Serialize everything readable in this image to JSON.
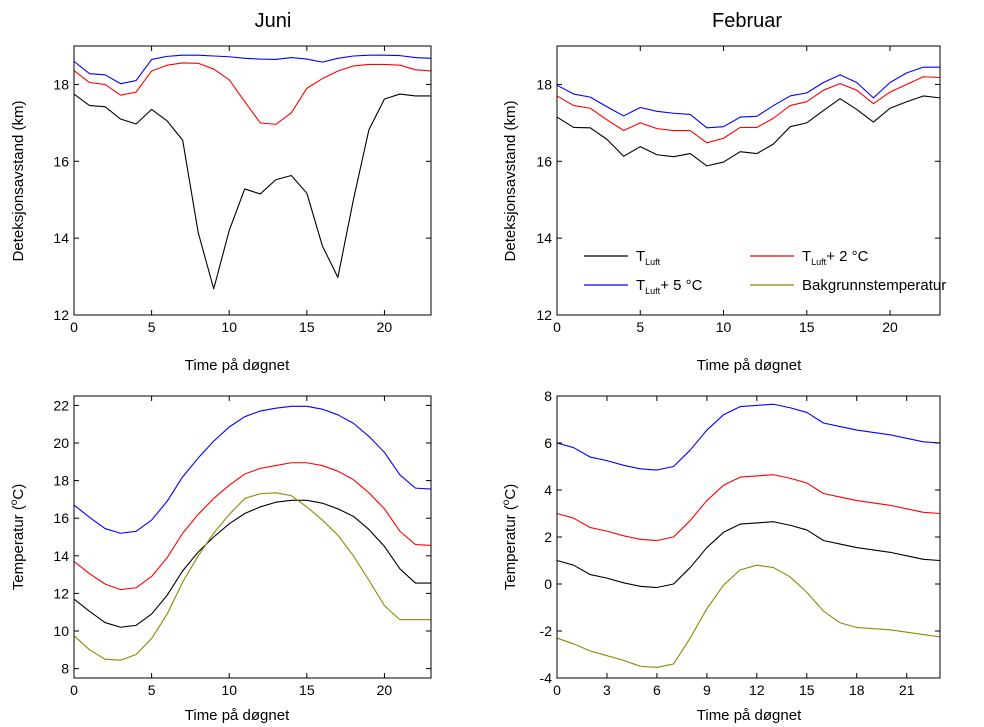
{
  "chart_data": [
    {
      "type": "line",
      "title": "Juni",
      "xlabel": "Time på døgnet",
      "ylabel": "Deteksjonsavstand (km)",
      "xlim": [
        0,
        23
      ],
      "ylim": [
        12,
        19
      ],
      "xticks": [
        0,
        5,
        10,
        15,
        20
      ],
      "yticks": [
        12,
        14,
        16,
        18
      ],
      "grid": false,
      "x": [
        0,
        1,
        2,
        3,
        4,
        5,
        6,
        7,
        8,
        9,
        10,
        11,
        12,
        13,
        14,
        15,
        16,
        17,
        18,
        19,
        20,
        21,
        22,
        23
      ],
      "series": [
        {
          "name": "T_Luft",
          "color": "#000000",
          "values": [
            17.75,
            17.45,
            17.42,
            17.1,
            16.97,
            17.35,
            17.05,
            16.55,
            14.15,
            12.68,
            14.2,
            15.28,
            15.15,
            15.52,
            15.63,
            15.17,
            13.8,
            12.98,
            15.0,
            16.82,
            17.62,
            17.75,
            17.7,
            17.7
          ]
        },
        {
          "name": "T_Luft + 2 °C",
          "color": "#ff0000",
          "values": [
            18.36,
            18.05,
            18.0,
            17.72,
            17.8,
            18.35,
            18.5,
            18.56,
            18.55,
            18.4,
            18.12,
            17.55,
            17.0,
            16.96,
            17.26,
            17.9,
            18.15,
            18.35,
            18.48,
            18.52,
            18.52,
            18.5,
            18.38,
            18.35
          ]
        },
        {
          "name": "T_Luft + 5 °C",
          "color": "#0000ff",
          "values": [
            18.6,
            18.28,
            18.25,
            18.02,
            18.1,
            18.65,
            18.73,
            18.76,
            18.76,
            18.74,
            18.72,
            18.68,
            18.66,
            18.65,
            18.7,
            18.66,
            18.58,
            18.68,
            18.74,
            18.76,
            18.76,
            18.75,
            18.7,
            18.68
          ]
        }
      ]
    },
    {
      "type": "line",
      "title": "Februar",
      "xlabel": "Time på døgnet",
      "ylabel": "Deteksjonsavstand (km)",
      "xlim": [
        0,
        23
      ],
      "ylim": [
        12,
        19
      ],
      "xticks": [
        0,
        5,
        10,
        15,
        20
      ],
      "yticks": [
        12,
        14,
        16,
        18
      ],
      "grid": false,
      "legend": "inside-bottom",
      "x": [
        0,
        1,
        2,
        3,
        4,
        5,
        6,
        7,
        8,
        9,
        10,
        11,
        12,
        13,
        14,
        15,
        16,
        17,
        18,
        19,
        20,
        21,
        22,
        23
      ],
      "series": [
        {
          "name": "T_Luft",
          "color": "#000000",
          "values": [
            17.15,
            16.88,
            16.87,
            16.57,
            16.13,
            16.38,
            16.17,
            16.12,
            16.2,
            15.88,
            15.98,
            16.25,
            16.2,
            16.45,
            16.9,
            17.0,
            17.32,
            17.63,
            17.35,
            17.02,
            17.38,
            17.55,
            17.7,
            17.65
          ]
        },
        {
          "name": "T_Luft + 2 °C",
          "color": "#ff0000",
          "values": [
            17.7,
            17.45,
            17.38,
            17.08,
            16.8,
            17.0,
            16.85,
            16.8,
            16.8,
            16.48,
            16.6,
            16.88,
            16.88,
            17.12,
            17.45,
            17.55,
            17.85,
            18.02,
            17.85,
            17.5,
            17.8,
            18.0,
            18.2,
            18.18
          ]
        },
        {
          "name": "T_Luft + 5 °C",
          "color": "#0000ff",
          "values": [
            17.98,
            17.75,
            17.67,
            17.42,
            17.18,
            17.4,
            17.3,
            17.25,
            17.22,
            16.87,
            16.9,
            17.15,
            17.17,
            17.45,
            17.7,
            17.78,
            18.05,
            18.25,
            18.05,
            17.65,
            18.05,
            18.3,
            18.45,
            18.45
          ]
        }
      ]
    },
    {
      "type": "line",
      "title": "",
      "xlabel": "Time på døgnet",
      "ylabel": "Temperatur (°C)",
      "xlim": [
        0,
        23
      ],
      "ylim": [
        7.5,
        22.5
      ],
      "xticks": [
        0,
        5,
        10,
        15,
        20
      ],
      "yticks": [
        8,
        10,
        12,
        14,
        16,
        18,
        20,
        22
      ],
      "grid": false,
      "x": [
        0,
        1,
        2,
        3,
        4,
        5,
        6,
        7,
        8,
        9,
        10,
        11,
        12,
        13,
        14,
        15,
        16,
        17,
        18,
        19,
        20,
        21,
        22,
        23
      ],
      "series": [
        {
          "name": "T_Luft",
          "color": "#000000",
          "values": [
            11.7,
            11.05,
            10.45,
            10.2,
            10.3,
            10.9,
            11.9,
            13.2,
            14.2,
            15.0,
            15.7,
            16.25,
            16.6,
            16.85,
            16.95,
            16.95,
            16.8,
            16.5,
            16.1,
            15.4,
            14.5,
            13.3,
            12.55,
            12.55
          ]
        },
        {
          "name": "T_Luft + 2 °C",
          "color": "#ff0000",
          "values": [
            13.7,
            13.05,
            12.5,
            12.2,
            12.3,
            12.9,
            13.9,
            15.2,
            16.2,
            17.05,
            17.75,
            18.35,
            18.65,
            18.8,
            18.95,
            18.95,
            18.8,
            18.5,
            18.05,
            17.35,
            16.5,
            15.3,
            14.6,
            14.55
          ]
        },
        {
          "name": "T_Luft + 5 °C",
          "color": "#0000ff",
          "values": [
            16.7,
            16.05,
            15.45,
            15.2,
            15.3,
            15.9,
            16.9,
            18.2,
            19.2,
            20.1,
            20.85,
            21.4,
            21.7,
            21.85,
            21.95,
            21.95,
            21.8,
            21.5,
            21.05,
            20.35,
            19.5,
            18.3,
            17.6,
            17.55
          ]
        },
        {
          "name": "Bakgrunnstemperatur",
          "color": "#8a8a00",
          "values": [
            9.75,
            9.0,
            8.5,
            8.45,
            8.75,
            9.6,
            10.9,
            12.6,
            14.0,
            15.2,
            16.2,
            17.05,
            17.3,
            17.35,
            17.2,
            16.6,
            15.9,
            15.1,
            14.0,
            12.7,
            11.35,
            10.6,
            10.6,
            10.6
          ]
        }
      ]
    },
    {
      "type": "line",
      "title": "",
      "xlabel": "Time på døgnet",
      "ylabel": "Temperatur (°C)",
      "xlim": [
        0,
        23
      ],
      "ylim": [
        -4,
        8
      ],
      "xticks": [
        0,
        3,
        6,
        9,
        12,
        15,
        18,
        21
      ],
      "yticks": [
        -4,
        -2,
        0,
        2,
        4,
        6,
        8
      ],
      "grid": false,
      "x": [
        0,
        1,
        2,
        3,
        4,
        5,
        6,
        7,
        8,
        9,
        10,
        11,
        12,
        13,
        14,
        15,
        16,
        17,
        18,
        19,
        20,
        21,
        22,
        23
      ],
      "series": [
        {
          "name": "T_Luft",
          "color": "#000000",
          "values": [
            1.0,
            0.8,
            0.4,
            0.25,
            0.05,
            -0.1,
            -0.15,
            0.0,
            0.7,
            1.55,
            2.2,
            2.55,
            2.6,
            2.65,
            2.5,
            2.3,
            1.85,
            1.7,
            1.55,
            1.45,
            1.35,
            1.2,
            1.05,
            1.0
          ]
        },
        {
          "name": "T_Luft + 2 °C",
          "color": "#ff0000",
          "values": [
            3.0,
            2.8,
            2.4,
            2.25,
            2.05,
            1.9,
            1.85,
            2.0,
            2.7,
            3.55,
            4.2,
            4.55,
            4.6,
            4.65,
            4.5,
            4.3,
            3.85,
            3.7,
            3.55,
            3.45,
            3.35,
            3.2,
            3.05,
            3.0
          ]
        },
        {
          "name": "T_Luft + 5 °C",
          "color": "#0000ff",
          "values": [
            6.0,
            5.8,
            5.4,
            5.25,
            5.05,
            4.9,
            4.85,
            5.0,
            5.7,
            6.55,
            7.2,
            7.55,
            7.6,
            7.65,
            7.5,
            7.3,
            6.85,
            6.7,
            6.55,
            6.45,
            6.35,
            6.2,
            6.05,
            6.0
          ]
        },
        {
          "name": "Bakgrunnstemperatur",
          "color": "#8a8a00",
          "values": [
            -2.3,
            -2.55,
            -2.85,
            -3.05,
            -3.25,
            -3.5,
            -3.55,
            -3.4,
            -2.3,
            -1.05,
            -0.05,
            0.6,
            0.8,
            0.7,
            0.3,
            -0.35,
            -1.15,
            -1.65,
            -1.85,
            -1.9,
            -1.95,
            -2.05,
            -2.15,
            -2.25
          ]
        }
      ]
    }
  ],
  "legend": {
    "t_luft_main": "T",
    "t_luft_sub": "Luft",
    "plus2_suffix": "+ 2 °C",
    "plus5_suffix": "+ 5 °C",
    "background": "Bakgrunnstemperatur",
    "colors": {
      "t_luft": "#000000",
      "plus2": "#ff0000",
      "plus5": "#0000ff",
      "background": "#8a8a00"
    }
  },
  "ylabel_parts": {
    "temp_prefix": "Temperatur (",
    "temp_sup": "o",
    "temp_suffix": "C)"
  }
}
